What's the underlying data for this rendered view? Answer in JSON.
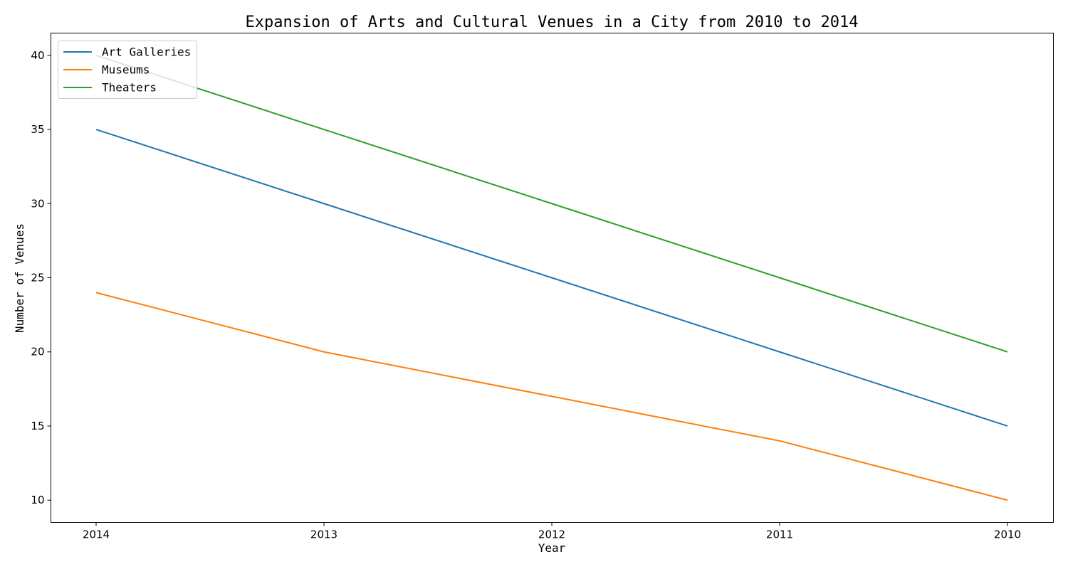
{
  "chart_data": {
    "type": "line",
    "title": "Expansion of Arts and Cultural Venues in a City from 2010 to 2014",
    "xlabel": "Year",
    "ylabel": "Number of Venues",
    "categories": [
      "2014",
      "2013",
      "2012",
      "2011",
      "2010"
    ],
    "series": [
      {
        "name": "Art Galleries",
        "color": "#1f77b4",
        "values": [
          35,
          30,
          25,
          20,
          15
        ]
      },
      {
        "name": "Museums",
        "color": "#ff7f0e",
        "values": [
          24,
          20,
          17,
          14,
          10
        ]
      },
      {
        "name": "Theaters",
        "color": "#2ca02c",
        "values": [
          40,
          35,
          30,
          25,
          20
        ]
      }
    ],
    "yticks": [
      10,
      15,
      20,
      25,
      30,
      35,
      40
    ],
    "ylim": [
      8.5,
      41.5
    ],
    "grid": false,
    "legend_position": "top-left"
  }
}
